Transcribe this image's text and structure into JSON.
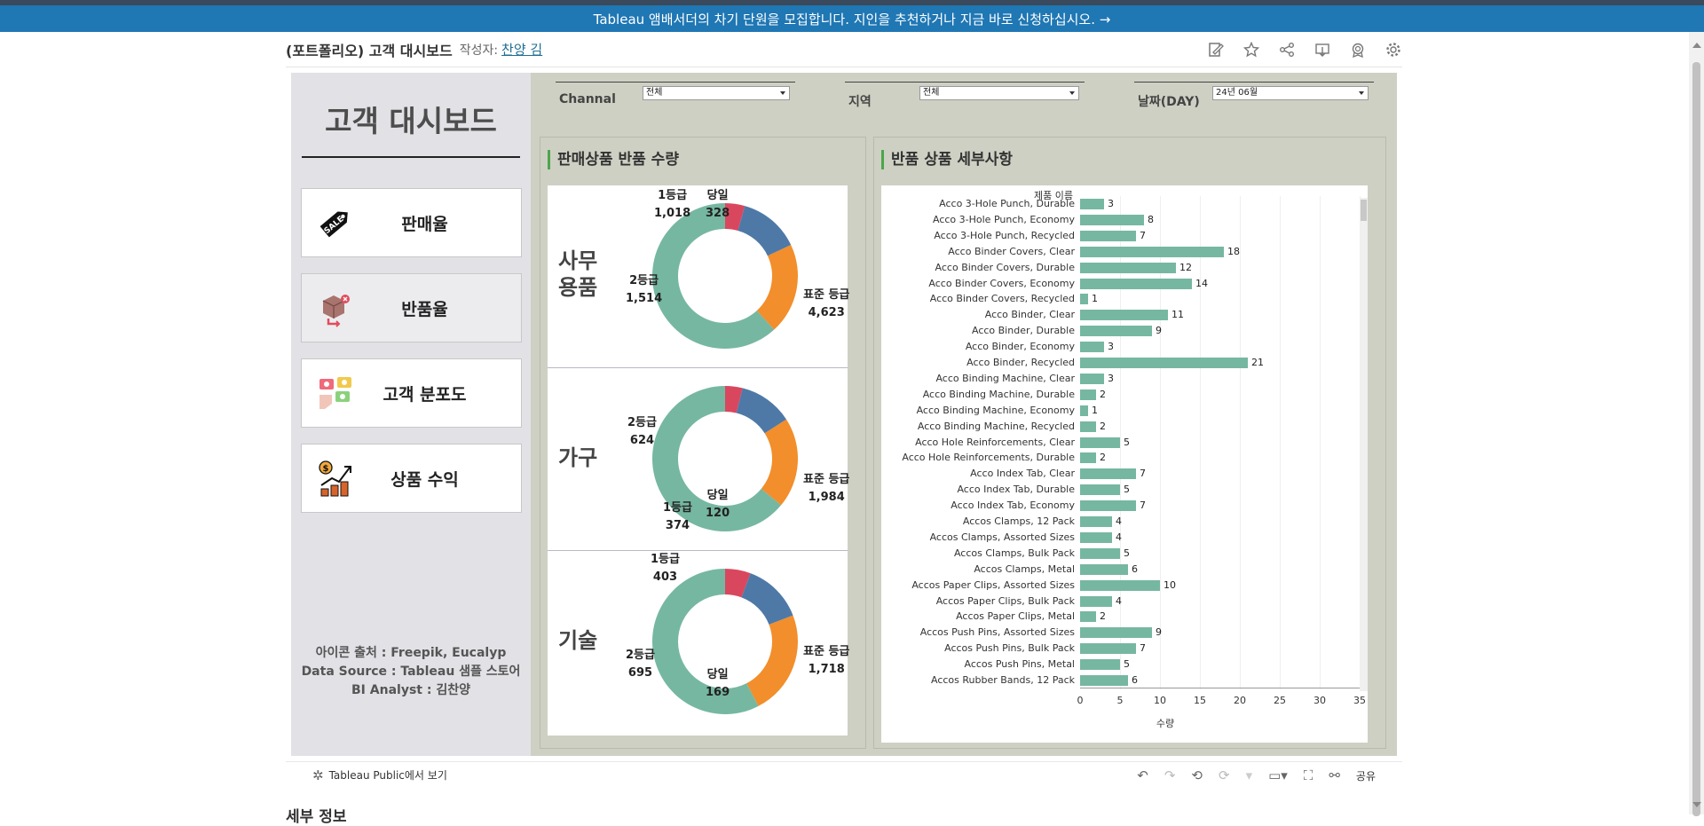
{
  "banner": {
    "text": "Tableau 앰배서더의 차기 단원을 모집합니다. 지인을 추천하거나 지금 바로 신청하십시오. →"
  },
  "header": {
    "title": "(포트폴리오) 고객 대시보드",
    "author_label": "작성자:",
    "author_name": "찬양 김",
    "icons": [
      "edit-icon",
      "star-icon",
      "share-icon",
      "download-icon",
      "badge-icon",
      "gear-icon"
    ]
  },
  "sidebar": {
    "title": "고객 대시보드",
    "items": [
      {
        "label": "판매율",
        "icon": "sale-tag-icon"
      },
      {
        "label": "반품율",
        "icon": "return-box-icon"
      },
      {
        "label": "고객 분포도",
        "icon": "customer-map-icon"
      },
      {
        "label": "상품 수익",
        "icon": "revenue-growth-icon"
      }
    ],
    "active_index": 1,
    "credits": [
      "아이콘 출처 : Freepik, Eucalyp",
      "Data Source : Tableau 샘플 스토어",
      "BI Analyst : 김찬양"
    ]
  },
  "filters": [
    {
      "label": "Channal",
      "value": "전체"
    },
    {
      "label": "지역",
      "value": "전체"
    },
    {
      "label": "날짜(DAY)",
      "value": "24년 06월"
    }
  ],
  "donut_panel": {
    "title": "판매상품 반품 수량",
    "categories": [
      {
        "name_lines": [
          "사무",
          "용품"
        ],
        "segments": [
          {
            "label": "당일",
            "value": 328,
            "value_text": "328",
            "color": "#d9475f"
          },
          {
            "label": "1등급",
            "value": 1018,
            "value_text": "1,018",
            "color": "#4e79a7"
          },
          {
            "label": "2등급",
            "value": 1514,
            "value_text": "1,514",
            "color": "#f28e2b"
          },
          {
            "label": "표준 등급",
            "value": 4623,
            "value_text": "4,623",
            "color": "#76b7a2"
          }
        ]
      },
      {
        "name_lines": [
          "가구"
        ],
        "segments": [
          {
            "label": "당일",
            "value": 120,
            "value_text": "120",
            "color": "#d9475f"
          },
          {
            "label": "1등급",
            "value": 374,
            "value_text": "374",
            "color": "#4e79a7"
          },
          {
            "label": "2등급",
            "value": 624,
            "value_text": "624",
            "color": "#f28e2b"
          },
          {
            "label": "표준 등급",
            "value": 1984,
            "value_text": "1,984",
            "color": "#76b7a2"
          }
        ]
      },
      {
        "name_lines": [
          "기술"
        ],
        "segments": [
          {
            "label": "당일",
            "value": 169,
            "value_text": "169",
            "color": "#d9475f"
          },
          {
            "label": "1등급",
            "value": 403,
            "value_text": "403",
            "color": "#4e79a7"
          },
          {
            "label": "2등급",
            "value": 695,
            "value_text": "695",
            "color": "#f28e2b"
          },
          {
            "label": "표준 등급",
            "value": 1718,
            "value_text": "1,718",
            "color": "#76b7a2"
          }
        ]
      }
    ]
  },
  "bar_panel": {
    "title": "반품 상품 세부사항",
    "column_header": "제품 이름",
    "xlabel": "수량",
    "xticks": [
      0,
      5,
      10,
      15,
      20,
      25,
      30,
      35
    ]
  },
  "chart_data": [
    {
      "type": "bar",
      "title": "반품 상품 세부사항",
      "orientation": "horizontal",
      "xlabel": "수량",
      "xlim": [
        0,
        35
      ],
      "categories": [
        "Acco 3-Hole Punch, Durable",
        "Acco 3-Hole Punch, Economy",
        "Acco 3-Hole Punch, Recycled",
        "Acco Binder Covers, Clear",
        "Acco Binder Covers, Durable",
        "Acco Binder Covers, Economy",
        "Acco Binder Covers, Recycled",
        "Acco Binder, Clear",
        "Acco Binder, Durable",
        "Acco Binder, Economy",
        "Acco Binder, Recycled",
        "Acco Binding Machine, Clear",
        "Acco Binding Machine, Durable",
        "Acco Binding Machine, Economy",
        "Acco Binding Machine, Recycled",
        "Acco Hole Reinforcements, Clear",
        "Acco Hole Reinforcements, Durable",
        "Acco Index Tab, Clear",
        "Acco Index Tab, Durable",
        "Acco Index Tab, Economy",
        "Accos Clamps, 12 Pack",
        "Accos Clamps, Assorted Sizes",
        "Accos Clamps, Bulk Pack",
        "Accos Clamps, Metal",
        "Accos Paper Clips, Assorted Sizes",
        "Accos Paper Clips, Bulk Pack",
        "Accos Paper Clips, Metal",
        "Accos Push Pins, Assorted Sizes",
        "Accos Push Pins, Bulk Pack",
        "Accos Push Pins, Metal",
        "Accos Rubber Bands, 12 Pack"
      ],
      "values": [
        3,
        8,
        7,
        18,
        12,
        14,
        1,
        11,
        9,
        3,
        21,
        3,
        2,
        1,
        2,
        5,
        2,
        7,
        5,
        7,
        4,
        4,
        5,
        6,
        10,
        4,
        2,
        9,
        7,
        5,
        6
      ]
    },
    {
      "type": "pie",
      "title": "판매상품 반품 수량",
      "categories": [
        "사무 용품",
        "가구",
        "기술"
      ],
      "series": [
        {
          "name": "당일",
          "values": [
            328,
            120,
            169
          ]
        },
        {
          "name": "1등급",
          "values": [
            1018,
            374,
            403
          ]
        },
        {
          "name": "2등급",
          "values": [
            1514,
            624,
            695
          ]
        },
        {
          "name": "표준 등급",
          "values": [
            4623,
            1984,
            1718
          ]
        }
      ]
    }
  ],
  "footer": {
    "link": "Tableau Public에서 보기",
    "share": "공유"
  },
  "below": {
    "text": "세부 정보"
  }
}
